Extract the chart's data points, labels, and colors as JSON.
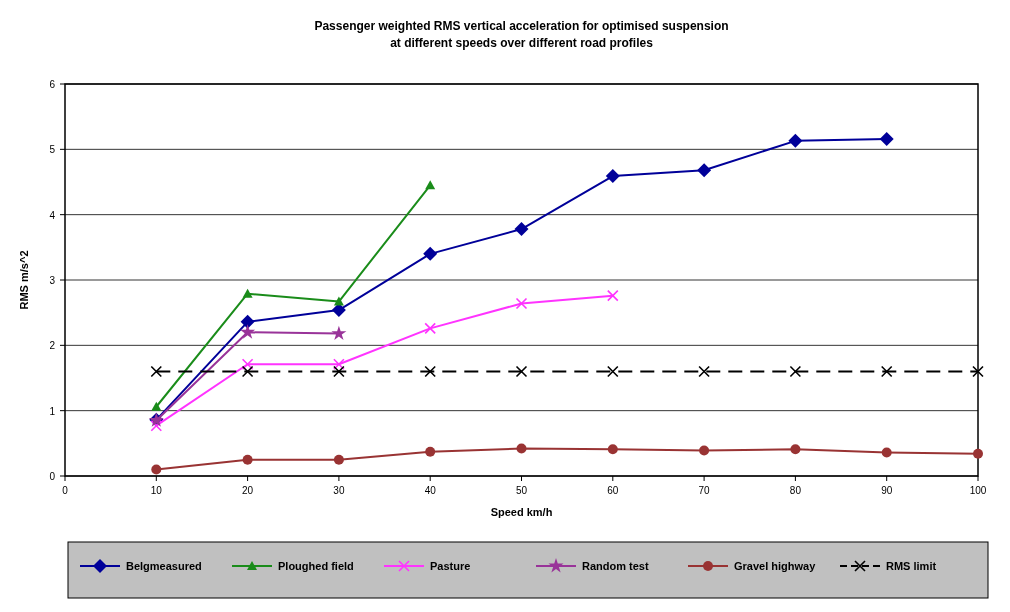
{
  "chart_data": {
    "type": "line",
    "title": "Passenger weighted  RMS vertical acceleration for optimised suspension\nat different speeds over different road profiles",
    "xlabel": "Speed km/h",
    "ylabel": "RMS m/s^2",
    "xlim": [
      0,
      100
    ],
    "ylim": [
      0,
      6
    ],
    "xticks": [
      0,
      10,
      20,
      30,
      40,
      50,
      60,
      70,
      80,
      90,
      100
    ],
    "yticks": [
      0,
      1,
      2,
      3,
      4,
      5,
      6
    ],
    "grid": "y",
    "legend": "bottom",
    "series": [
      {
        "name": "Belgmeasured",
        "color": "#000099",
        "marker": "diamond",
        "x": [
          10,
          20,
          30,
          40,
          50,
          60,
          70,
          80,
          90
        ],
        "values": [
          0.86,
          2.36,
          2.54,
          3.4,
          3.78,
          4.59,
          4.68,
          5.13,
          5.16
        ]
      },
      {
        "name": "Ploughed field",
        "color": "#1a8c1a",
        "marker": "triangle",
        "x": [
          10,
          20,
          30,
          40
        ],
        "values": [
          1.06,
          2.79,
          2.67,
          4.45
        ]
      },
      {
        "name": "Pasture",
        "color": "#ff33ff",
        "marker": "cross",
        "x": [
          10,
          20,
          30,
          40,
          50,
          60
        ],
        "values": [
          0.77,
          1.71,
          1.71,
          2.26,
          2.64,
          2.76
        ]
      },
      {
        "name": "Random test",
        "color": "#993399",
        "marker": "star",
        "x": [
          10,
          20,
          30
        ],
        "values": [
          0.85,
          2.2,
          2.18
        ]
      },
      {
        "name": "Gravel highway",
        "color": "#993333",
        "marker": "circle",
        "x": [
          10,
          20,
          30,
          40,
          50,
          60,
          70,
          80,
          90,
          100
        ],
        "values": [
          0.1,
          0.25,
          0.25,
          0.37,
          0.42,
          0.41,
          0.39,
          0.41,
          0.36,
          0.34
        ]
      },
      {
        "name": "RMS limit",
        "color": "#000000",
        "marker": "cross",
        "line_style": "dashed",
        "x": [
          10,
          20,
          30,
          40,
          50,
          60,
          70,
          80,
          90,
          100
        ],
        "values": [
          1.6,
          1.6,
          1.6,
          1.6,
          1.6,
          1.6,
          1.6,
          1.6,
          1.6,
          1.6
        ]
      }
    ]
  }
}
